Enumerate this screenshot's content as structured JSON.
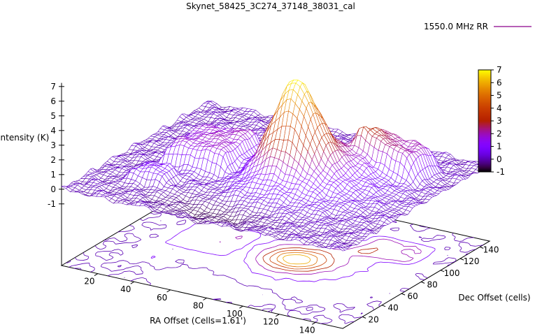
{
  "page": {
    "background": "#ffffff"
  },
  "chart_data": {
    "type": "surface3d",
    "title": "Skynet_58425_3C274_37148_38031_cal",
    "legend": {
      "label": "1550.0 MHz RR",
      "line_color": "#8b008b"
    },
    "xlabel": "RA Offset (Cells=1.61')",
    "ylabel": "Dec Offset (cells)",
    "zlabel": "Intensity (K)",
    "xlim": [
      0,
      155
    ],
    "ylim": [
      0,
      150
    ],
    "zlim": [
      -1,
      7
    ],
    "xticks": [
      20,
      40,
      60,
      80,
      100,
      120,
      140
    ],
    "yticks": [
      20,
      40,
      60,
      80,
      100,
      120,
      140
    ],
    "zticks": [
      -1,
      0,
      1,
      2,
      3,
      4,
      5,
      6,
      7
    ],
    "colorbar": {
      "min": -1,
      "max": 7,
      "ticks": [
        7,
        6,
        5,
        4,
        3,
        2,
        1,
        0,
        -1
      ],
      "palette": "pm3d rgbformulae 7,5,15 black-purple-red-orange-yellow"
    },
    "contour_levels": [
      0,
      1,
      2,
      3,
      4,
      5,
      6
    ],
    "grid": {
      "nx": 66,
      "ny": 62
    },
    "surface_model": {
      "base_level": 0.02,
      "noise_terms": [
        {
          "a": 0.06,
          "kx": 0.29,
          "ky": 0.26,
          "ph": 0.9
        },
        {
          "a": 0.06,
          "kx": 0.29,
          "ky": -0.26,
          "ph": 2.5
        },
        {
          "a": 0.06,
          "kx": 0.53,
          "ky": 0.41,
          "ph": 2.4
        },
        {
          "a": 0.05,
          "kx": 0.83,
          "ky": -0.35,
          "ph": 0.5
        },
        {
          "a": 0.04,
          "kx": 0.13,
          "ky": 0.61,
          "ph": 1.2
        }
      ],
      "features": [
        {
          "type": "gauss",
          "x": 90,
          "y": 73,
          "a": 5.1,
          "sx": 10.5,
          "sy": 10.5
        },
        {
          "type": "gauss",
          "x": 90,
          "y": 73,
          "a": 1.8,
          "sx": 26,
          "sy": 24
        },
        {
          "type": "plateau",
          "x": 42,
          "y": 76,
          "a": 1.5,
          "wx": 17,
          "wy": 20,
          "k": 0.8
        },
        {
          "type": "plateau",
          "x": 124,
          "y": 112,
          "a": 1.9,
          "wx": 16,
          "wy": 14,
          "k": 0.7
        },
        {
          "type": "gauss",
          "x": 124,
          "y": 112,
          "a": -0.35,
          "sx": 7,
          "sy": 7
        },
        {
          "type": "gauss",
          "x": 108,
          "y": 100,
          "a": 1.0,
          "sx": 14,
          "sy": 16
        },
        {
          "type": "gauss",
          "x": 75,
          "y": 18,
          "a": -0.7,
          "sx": 20,
          "sy": 10
        },
        {
          "type": "plateau",
          "x": 30,
          "y": 38,
          "a": 0.8,
          "wx": 10,
          "wy": 9,
          "k": 0.9
        },
        {
          "type": "gauss",
          "x": 62,
          "y": 65,
          "a": -0.6,
          "sx": 9,
          "sy": 18
        }
      ]
    }
  }
}
